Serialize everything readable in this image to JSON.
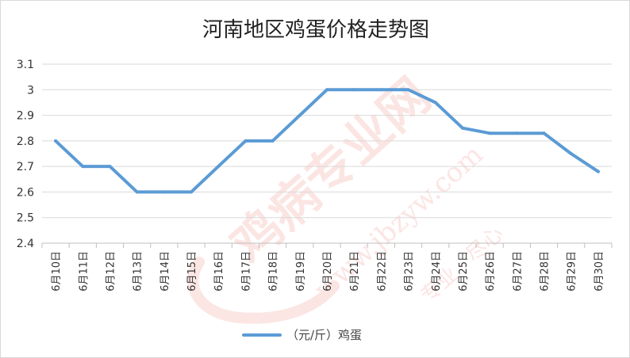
{
  "colors": {
    "series": "#5b9bd5",
    "grid": "#d9d9d9",
    "watermark": "#e8645a"
  },
  "watermark": {
    "main": "鸡病专业网",
    "url": "www.jbzyw.com",
    "faint": "专业 · 尽心"
  },
  "chart_data": {
    "type": "line",
    "title": "河南地区鸡蛋价格走势图",
    "xlabel": "",
    "ylabel": "",
    "categories": [
      "6月10日",
      "6月11日",
      "6月12日",
      "6月13日",
      "6月14日",
      "6月15日",
      "6月16日",
      "6月17日",
      "6月18日",
      "6月19日",
      "6月20日",
      "6月21日",
      "6月22日",
      "6月23日",
      "6月24日",
      "6月25日",
      "6月26日",
      "6月27日",
      "6月28日",
      "6月29日",
      "6月30日"
    ],
    "series": [
      {
        "name": "（元/斤）鸡蛋",
        "values": [
          2.8,
          2.7,
          2.7,
          2.6,
          2.6,
          2.6,
          2.7,
          2.8,
          2.8,
          2.9,
          3.0,
          3.0,
          3.0,
          3.0,
          2.95,
          2.85,
          2.83,
          2.83,
          2.83,
          2.75,
          2.68
        ]
      }
    ],
    "ylim": [
      2.4,
      3.1
    ],
    "yticks": [
      "2.4",
      "2.5",
      "2.6",
      "2.7",
      "2.8",
      "2.9",
      "3",
      "3.1"
    ],
    "grid": true,
    "legend": "bottom-center"
  }
}
